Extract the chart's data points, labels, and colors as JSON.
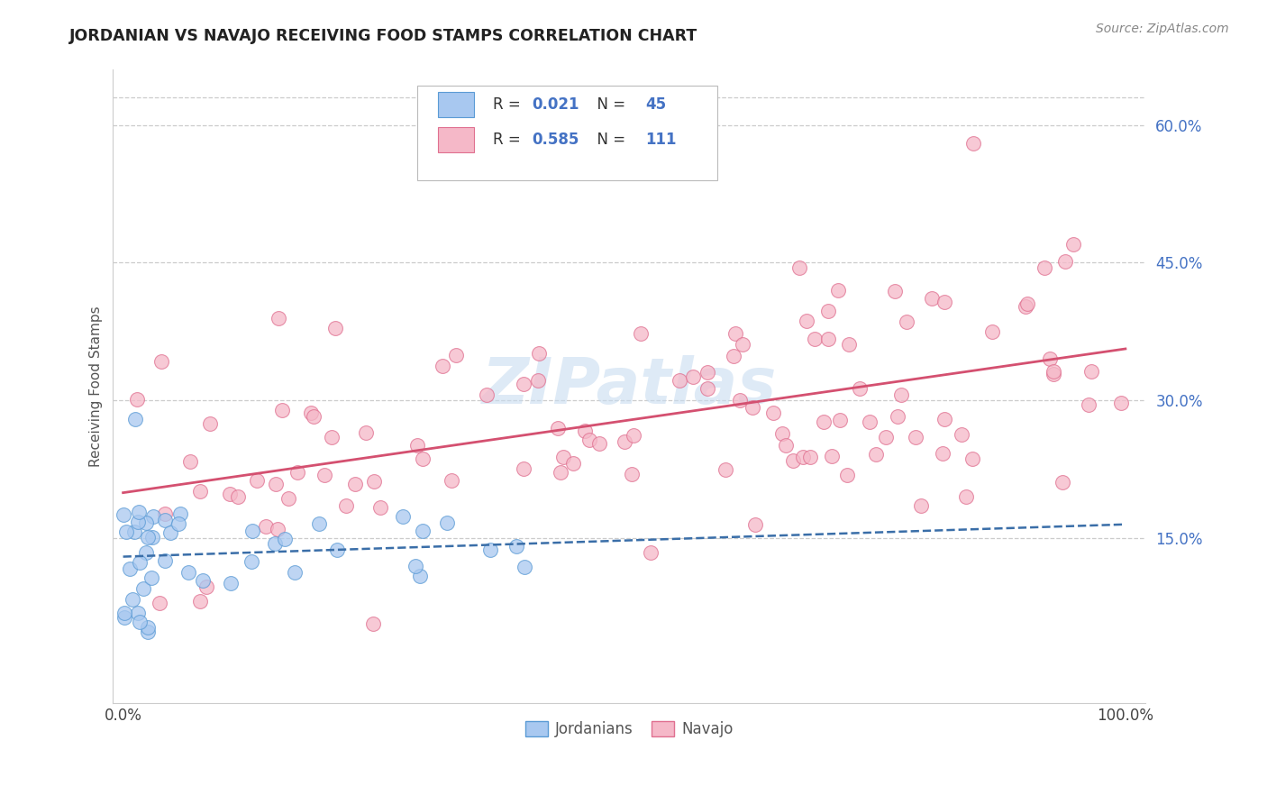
{
  "title": "JORDANIAN VS NAVAJO RECEIVING FOOD STAMPS CORRELATION CHART",
  "source": "Source: ZipAtlas.com",
  "ylabel": "Receiving Food Stamps",
  "ytick_vals": [
    15.0,
    30.0,
    45.0,
    60.0
  ],
  "blue_color": "#A8C8F0",
  "pink_color": "#F5B8C8",
  "blue_edge_color": "#5B9BD5",
  "pink_edge_color": "#E07090",
  "blue_line_color": "#3A6EA8",
  "pink_line_color": "#D45070",
  "legend_label_jordanians": "Jordanians",
  "legend_label_navajo": "Navajo",
  "watermark_color": "#C8DCF0",
  "seed": 99
}
